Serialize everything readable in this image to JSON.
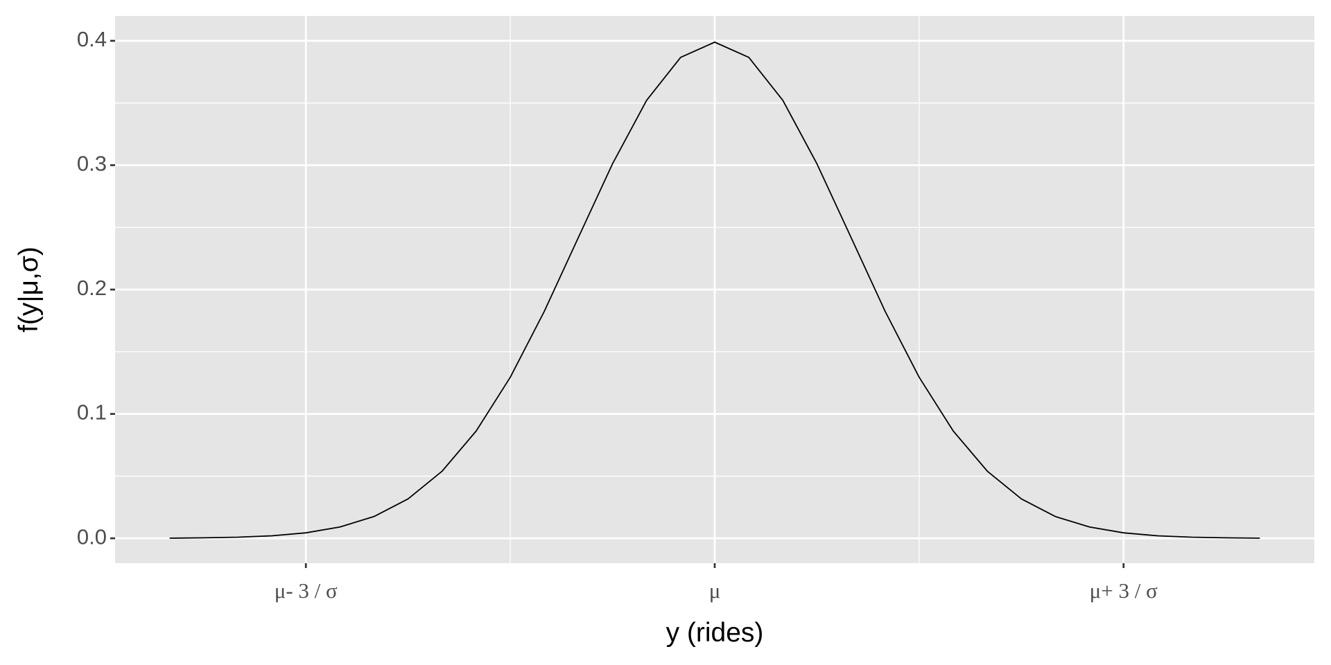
{
  "chart_data": {
    "type": "line",
    "x_label": "y (rides)",
    "y_label": "f(y|μ,σ)",
    "x": [
      -4,
      -3.75,
      -3.5,
      -3.25,
      -3,
      -2.75,
      -2.5,
      -2.25,
      -2,
      -1.75,
      -1.5,
      -1.25,
      -1,
      -0.75,
      -0.5,
      -0.25,
      0,
      0.25,
      0.5,
      0.75,
      1,
      1.25,
      1.5,
      1.75,
      2,
      2.25,
      2.5,
      2.75,
      3,
      3.25,
      3.5,
      3.75,
      4
    ],
    "series": [
      {
        "color": "#000000",
        "values": [
          0.0001,
          0.0004,
          0.0009,
          0.002,
          0.0044,
          0.0091,
          0.0175,
          0.0317,
          0.054,
          0.0863,
          0.1295,
          0.1826,
          0.242,
          0.3011,
          0.3521,
          0.3867,
          0.3989,
          0.3867,
          0.3521,
          0.3011,
          0.242,
          0.1826,
          0.1295,
          0.0863,
          0.054,
          0.0317,
          0.0175,
          0.0091,
          0.0044,
          0.002,
          0.0009,
          0.0004,
          0.0001
        ]
      }
    ],
    "xlim": [
      -4.4,
      4.4
    ],
    "ylim": [
      -0.02,
      0.42
    ],
    "xticks": [
      {
        "value": -3,
        "label": "μ- 3 / σ"
      },
      {
        "value": 0,
        "label": "μ"
      },
      {
        "value": 3,
        "label": "μ+ 3 / σ"
      }
    ],
    "yticks": [
      {
        "value": 0,
        "label": "0.0"
      },
      0.1,
      0.2,
      0.3,
      0.4
    ],
    "x_minor_grid": [
      -1.5,
      1.5
    ],
    "y_minor_grid": [
      0.05,
      0.15,
      0.25,
      0.35
    ],
    "grid": true,
    "panel_color": "#e5e5e5"
  }
}
